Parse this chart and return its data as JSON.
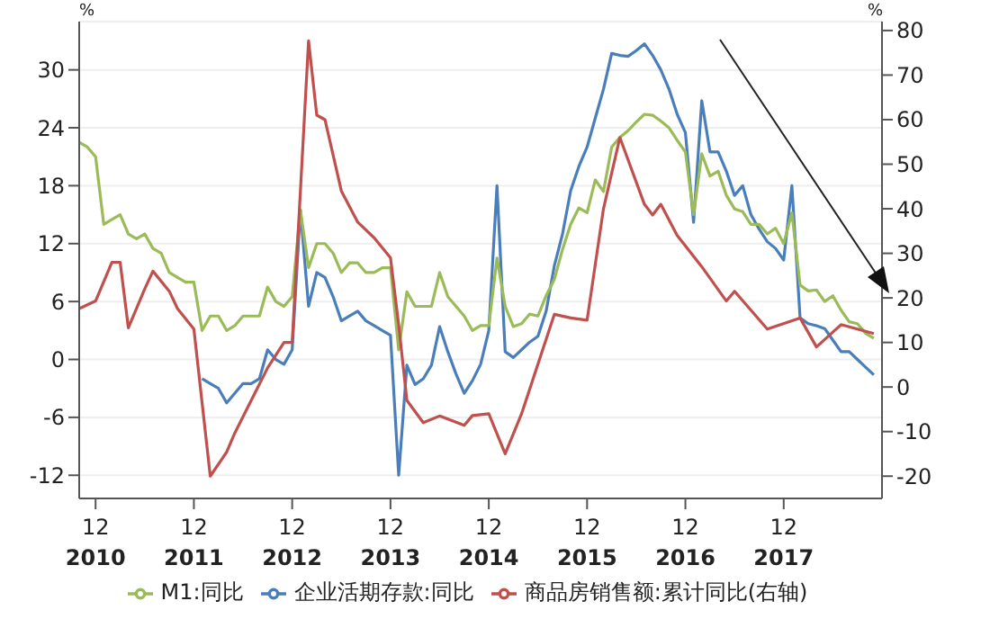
{
  "chart_data": {
    "type": "line",
    "ylabel": "%",
    "y2label": "%",
    "grid": "y",
    "legend": "bottom",
    "marker": "none",
    "line_style": "solid",
    "xlim": [
      "2010-10",
      "2018-12"
    ],
    "xticks": [
      {
        "value": "2010-12",
        "label": "12\n2010"
      },
      {
        "value": "2011-12",
        "label": "12\n2011"
      },
      {
        "value": "2012-12",
        "label": "12\n2012"
      },
      {
        "value": "2013-12",
        "label": "12\n2013"
      },
      {
        "value": "2014-12",
        "label": "12\n2014"
      },
      {
        "value": "2015-12",
        "label": "12\n2015"
      },
      {
        "value": "2016-12",
        "label": "12\n2016"
      },
      {
        "value": "2017-12",
        "label": "12\n2017"
      }
    ],
    "ylim": [
      -14.4,
      35
    ],
    "yticks": [
      -12,
      -6,
      0,
      6,
      12,
      18,
      24,
      30
    ],
    "y2lim": [
      -25,
      82
    ],
    "y2ticks": [
      -20,
      -10,
      0,
      10,
      20,
      30,
      40,
      50,
      60,
      70,
      80
    ],
    "series": [
      {
        "name": "企业活期存款:同比",
        "color": "#4a7ebb",
        "x": [
          "2012-01",
          "2012-02",
          "2012-03",
          "2012-04",
          "2012-05",
          "2012-06",
          "2012-07",
          "2012-08",
          "2012-09",
          "2012-10",
          "2012-11",
          "2012-12",
          "2013-01",
          "2013-02",
          "2013-03",
          "2013-04",
          "2013-05",
          "2013-06",
          "2013-07",
          "2013-08",
          "2013-09",
          "2013-10",
          "2013-11",
          "2013-12",
          "2014-01",
          "2014-02",
          "2014-03",
          "2014-04",
          "2014-05",
          "2014-06",
          "2014-07",
          "2014-08",
          "2014-09",
          "2014-10",
          "2014-11",
          "2014-12",
          "2015-01",
          "2015-02",
          "2015-03",
          "2015-04",
          "2015-05",
          "2015-06",
          "2015-07",
          "2015-08",
          "2015-09",
          "2015-10",
          "2015-11",
          "2015-12",
          "2016-01",
          "2016-02",
          "2016-03",
          "2016-04",
          "2016-05",
          "2016-06",
          "2016-07",
          "2016-08",
          "2016-09",
          "2016-10",
          "2016-11",
          "2016-12",
          "2017-01",
          "2017-02",
          "2017-03",
          "2017-04",
          "2017-05",
          "2017-06",
          "2017-07",
          "2017-08",
          "2017-09",
          "2017-10",
          "2017-11",
          "2017-12",
          "2018-01",
          "2018-02",
          "2018-03",
          "2018-04",
          "2018-05",
          "2018-06",
          "2018-07",
          "2018-08",
          "2018-09",
          "2018-10",
          "2018-11"
        ],
        "values": [
          -2,
          -2.5,
          -3,
          -4.5,
          -3.5,
          -2.5,
          -2.5,
          -2,
          1,
          0,
          -0.5,
          1,
          15.5,
          5.5,
          9,
          8.5,
          6.5,
          4,
          4.5,
          5,
          4,
          3.5,
          3,
          2.5,
          -12,
          -0.6,
          -2.6,
          -2,
          -0.6,
          3.4,
          0.8,
          -1.5,
          -3.5,
          -2.2,
          -0.5,
          3,
          18,
          0.8,
          0.2,
          1,
          1.8,
          2.4,
          5,
          9.7,
          13,
          17.5,
          20,
          22,
          25,
          28,
          31.7,
          31.5,
          31.4,
          32,
          32.7,
          31.5,
          30,
          28,
          25.4,
          23.5,
          14.2,
          26.8,
          21.5,
          21.5,
          19.5,
          17,
          18,
          15,
          13.5,
          12.2,
          11.5,
          10.3,
          18,
          4.3,
          3.7,
          3.5,
          3.2,
          2,
          0.8,
          0.8,
          0,
          -0.8,
          -1.6
        ]
      },
      {
        "name": "M1:同比",
        "color": "#9bbb59",
        "x": [
          "2010-10",
          "2010-11",
          "2010-12",
          "2011-01",
          "2011-02",
          "2011-03",
          "2011-04",
          "2011-05",
          "2011-06",
          "2011-07",
          "2011-08",
          "2011-09",
          "2011-10",
          "2011-11",
          "2011-12",
          "2012-01",
          "2012-02",
          "2012-03",
          "2012-04",
          "2012-05",
          "2012-06",
          "2012-07",
          "2012-08",
          "2012-09",
          "2012-10",
          "2012-11",
          "2012-12",
          "2013-01",
          "2013-02",
          "2013-03",
          "2013-04",
          "2013-05",
          "2013-06",
          "2013-07",
          "2013-08",
          "2013-09",
          "2013-10",
          "2013-11",
          "2013-12",
          "2014-01",
          "2014-02",
          "2014-03",
          "2014-04",
          "2014-05",
          "2014-06",
          "2014-07",
          "2014-08",
          "2014-09",
          "2014-10",
          "2014-11",
          "2014-12",
          "2015-01",
          "2015-02",
          "2015-03",
          "2015-04",
          "2015-05",
          "2015-06",
          "2015-07",
          "2015-08",
          "2015-09",
          "2015-10",
          "2015-11",
          "2015-12",
          "2016-01",
          "2016-02",
          "2016-03",
          "2016-04",
          "2016-05",
          "2016-06",
          "2016-07",
          "2016-08",
          "2016-09",
          "2016-10",
          "2016-11",
          "2016-12",
          "2017-01",
          "2017-02",
          "2017-03",
          "2017-04",
          "2017-05",
          "2017-06",
          "2017-07",
          "2017-08",
          "2017-09",
          "2017-10",
          "2017-11",
          "2017-12",
          "2018-01",
          "2018-02",
          "2018-03",
          "2018-04",
          "2018-05",
          "2018-06",
          "2018-07",
          "2018-08",
          "2018-09",
          "2018-10",
          "2018-11"
        ],
        "values": [
          22.5,
          22,
          21,
          14,
          14.5,
          15,
          13,
          12.5,
          13,
          11.5,
          11,
          9,
          8.5,
          8,
          8,
          3,
          4.5,
          4.5,
          3,
          3.5,
          4.5,
          4.5,
          4.5,
          7.5,
          6,
          5.5,
          6.5,
          15.5,
          9.5,
          12,
          12,
          11,
          9,
          10,
          10,
          9,
          9,
          9.5,
          9.5,
          1,
          7,
          5.5,
          5.5,
          5.5,
          9,
          6.5,
          5.5,
          4.5,
          3,
          3.5,
          3.5,
          10.5,
          5.5,
          3.4,
          3.7,
          4.7,
          4.5,
          6.6,
          8.3,
          11.4,
          14,
          15.7,
          15.2,
          18.6,
          17.4,
          22,
          23,
          23.7,
          24.6,
          25.4,
          25.3,
          24.7,
          24,
          22.7,
          21.5,
          15,
          21.3,
          19,
          19.5,
          17,
          15.6,
          15.3,
          14,
          14,
          13,
          13.6,
          12,
          15.2,
          7.7,
          7.1,
          7.2,
          6,
          6.6,
          5.1,
          3.9,
          3.7,
          2.7,
          2.2
        ]
      },
      {
        "name": "商品房销售额:累计同比(右轴)",
        "color": "#c0504d",
        "axis": "y2",
        "x": [
          "2010-10",
          "2010-12",
          "2011-02",
          "2011-03",
          "2011-04",
          "2011-06",
          "2011-07",
          "2011-09",
          "2011-10",
          "2011-12",
          "2012-02",
          "2012-04",
          "2012-05",
          "2012-07",
          "2012-09",
          "2012-11",
          "2012-12",
          "2013-02",
          "2013-03",
          "2013-04",
          "2013-06",
          "2013-08",
          "2013-10",
          "2013-12",
          "2014-01",
          "2014-02",
          "2014-04",
          "2014-06",
          "2014-09",
          "2014-10",
          "2014-12",
          "2015-02",
          "2015-04",
          "2015-08",
          "2015-10",
          "2015-12",
          "2016-02",
          "2016-04",
          "2016-07",
          "2016-08",
          "2016-09",
          "2016-11",
          "2017-02",
          "2017-05",
          "2017-06",
          "2017-10",
          "2018-02",
          "2018-04",
          "2018-07",
          "2018-11"
        ],
        "values": [
          17.6,
          19.3,
          28,
          28,
          13.3,
          22,
          26,
          21.5,
          17.6,
          13,
          -20,
          -14.6,
          -10.3,
          -3,
          4.3,
          10,
          10,
          77.7,
          61,
          60,
          44,
          37,
          33.5,
          29,
          14,
          -3,
          -8,
          -6.5,
          -8.6,
          -6.4,
          -6,
          -15,
          -6,
          16.3,
          15.5,
          15,
          40,
          56,
          41,
          38.6,
          41,
          34,
          27,
          19.3,
          21.5,
          13,
          15.5,
          9,
          14,
          12
        ]
      }
    ]
  }
}
